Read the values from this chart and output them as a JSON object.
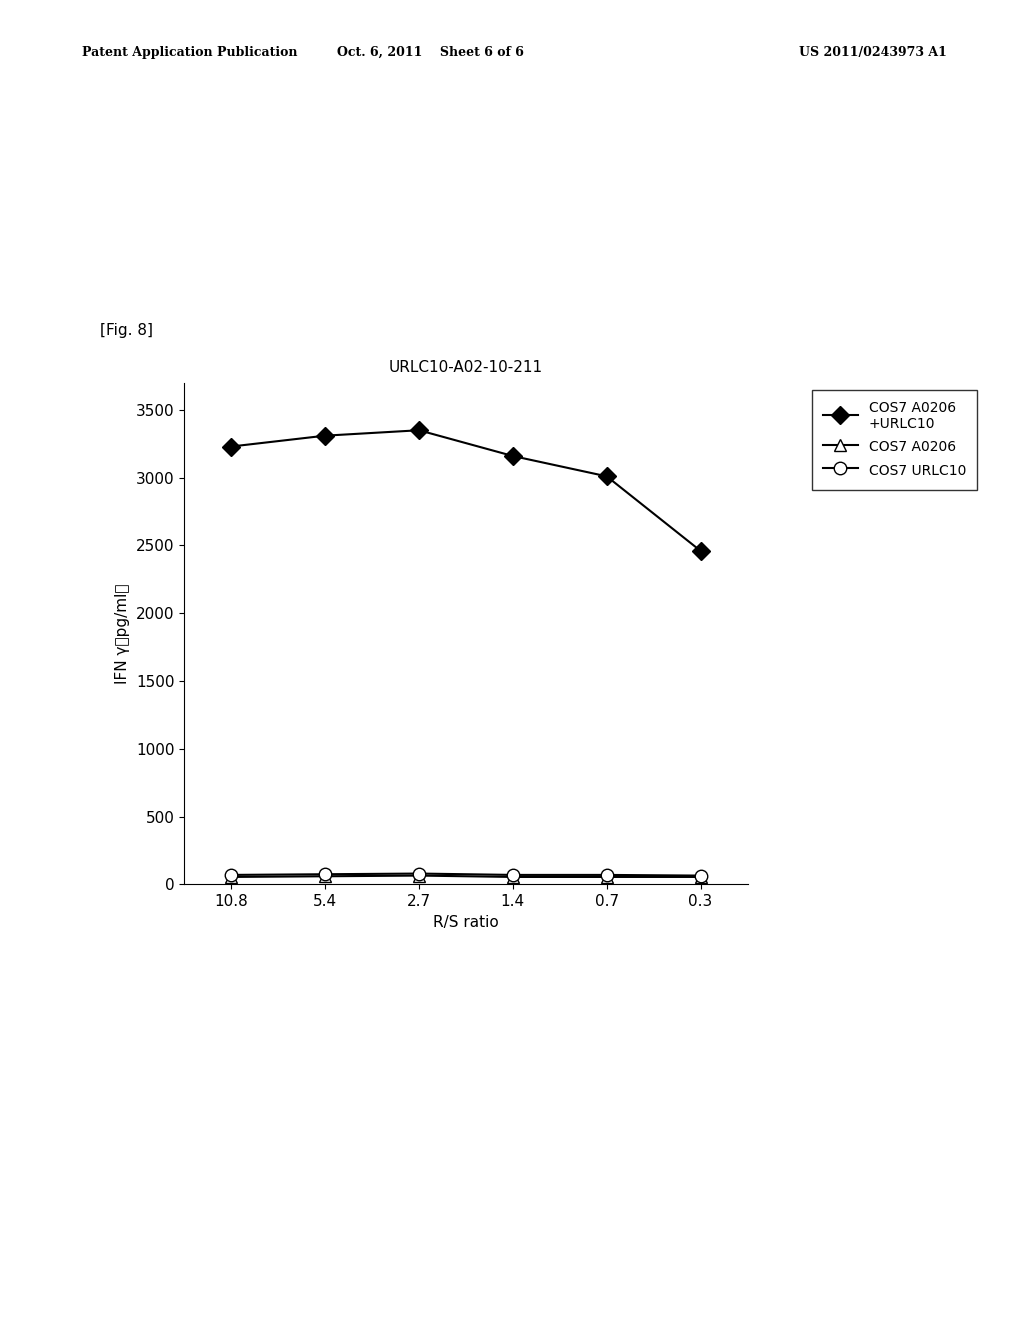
{
  "fig_label": "[Fig. 8]",
  "chart_title": "URLC10-A02-10-211",
  "xlabel": "R/S ratio",
  "ylabel": "IFN γ（pg/ml）",
  "x_tick_labels": [
    "10.8",
    "5.4",
    "2.7",
    "1.4",
    "0.7",
    "0.3"
  ],
  "x_positions": [
    0,
    1,
    2,
    3,
    4,
    5
  ],
  "ylim": [
    0,
    3700
  ],
  "yticks": [
    0,
    500,
    1000,
    1500,
    2000,
    2500,
    3000,
    3500
  ],
  "series": [
    {
      "label": "COS7 A0206\n+URLC10",
      "y": [
        3230,
        3310,
        3350,
        3160,
        3010,
        2460
      ],
      "color": "#000000",
      "marker": "D",
      "markerfacecolor": "#000000",
      "markersize": 9,
      "linewidth": 1.5
    },
    {
      "label": "COS7 A0206",
      "y": [
        55,
        60,
        65,
        55,
        55,
        55
      ],
      "color": "#000000",
      "marker": "^",
      "markerfacecolor": "#ffffff",
      "markersize": 9,
      "linewidth": 1.5
    },
    {
      "label": "COS7 URLC10",
      "y": [
        70,
        75,
        80,
        70,
        70,
        65
      ],
      "color": "#000000",
      "marker": "o",
      "markerfacecolor": "#ffffff",
      "markersize": 9,
      "linewidth": 1.5
    }
  ],
  "header_left": "Patent Application Publication",
  "header_center": "Oct. 6, 2011    Sheet 6 of 6",
  "header_right": "US 2011/0243973 A1",
  "background_color": "#ffffff",
  "legend_fontsize": 10,
  "axis_fontsize": 11,
  "tick_fontsize": 11
}
